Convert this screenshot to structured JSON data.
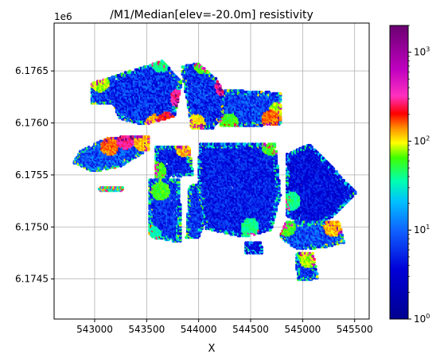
{
  "chart_data": {
    "type": "scatter",
    "title": "/M1/Median[elev=-20.0m] resistivity",
    "xlabel": "X",
    "ylabel": "",
    "xlim": [
      542610,
      545640
    ],
    "ylim": [
      6174115,
      6176960
    ],
    "x_ticks": [
      {
        "value": 543000,
        "label": "543000"
      },
      {
        "value": 543500,
        "label": "543500"
      },
      {
        "value": 544000,
        "label": "544000"
      },
      {
        "value": 544500,
        "label": "544500"
      },
      {
        "value": 545000,
        "label": "545000"
      },
      {
        "value": 545500,
        "label": "545500"
      }
    ],
    "y_ticks": [
      {
        "value": 6174500,
        "label": "6.1745"
      },
      {
        "value": 6175000,
        "label": "6.1750"
      },
      {
        "value": 6175500,
        "label": "6.1755"
      },
      {
        "value": 6176000,
        "label": "6.1760"
      },
      {
        "value": 6176500,
        "label": "6.1765"
      }
    ],
    "y_offset_label": "1e6",
    "grid": true,
    "colorbar": {
      "scale": "log",
      "range": [
        1,
        2000
      ],
      "ticks": [
        {
          "value": 1,
          "label_base": "10",
          "label_exp": "0"
        },
        {
          "value": 10,
          "label_base": "10",
          "label_exp": "1"
        },
        {
          "value": 100,
          "label_base": "10",
          "label_exp": "2"
        },
        {
          "value": 1000,
          "label_base": "10",
          "label_exp": "3"
        }
      ]
    },
    "blocks": [
      {
        "name": "west-block",
        "x": [
          542790,
          542860,
          543130,
          543530,
          543520,
          543360,
          543250,
          542990,
          542830
        ],
        "y": [
          6175610,
          6175730,
          6175860,
          6175880,
          6175740,
          6175650,
          6175580,
          6175530,
          6175600
        ],
        "base": 8,
        "var": 4,
        "hot": [
          {
            "x": 543150,
            "y": 6175780,
            "v": 150
          },
          {
            "x": 543300,
            "y": 6175840,
            "v": 300
          },
          {
            "x": 543470,
            "y": 6175820,
            "v": 120
          }
        ]
      },
      {
        "name": "small-south-strip",
        "x": [
          543050,
          543280,
          543260,
          543030
        ],
        "y": [
          6175380,
          6175380,
          6175350,
          6175350
        ],
        "base": 30,
        "var": 3
      },
      {
        "name": "north-block",
        "x": [
          542960,
          543160,
          543650,
          543840,
          543770,
          543470,
          543240,
          543180,
          542970
        ],
        "y": [
          6176380,
          6176440,
          6176600,
          6176390,
          6176060,
          6175980,
          6176040,
          6176180,
          6176180
        ],
        "base": 6,
        "var": 4,
        "hot": [
          {
            "x": 543580,
            "y": 6175990,
            "v": 120
          },
          {
            "x": 543700,
            "y": 6176020,
            "v": 200
          },
          {
            "x": 543820,
            "y": 6176240,
            "v": 300
          },
          {
            "x": 543640,
            "y": 6176580,
            "v": 40
          },
          {
            "x": 543060,
            "y": 6176390,
            "v": 80
          }
        ]
      },
      {
        "name": "north-strip",
        "x": [
          543830,
          543990,
          544180,
          544310,
          544140,
          543930
        ],
        "y": [
          6176540,
          6176580,
          6176420,
          6176160,
          6175950,
          6175950
        ],
        "base": 6,
        "var": 4,
        "hot": [
          {
            "x": 544050,
            "y": 6176560,
            "v": 60
          },
          {
            "x": 544250,
            "y": 6176350,
            "v": 300
          },
          {
            "x": 543980,
            "y": 6176000,
            "v": 100
          }
        ]
      },
      {
        "name": "north-east-block",
        "x": [
          544250,
          544800,
          544800,
          544200
        ],
        "y": [
          6176320,
          6176290,
          6175980,
          6175960
        ],
        "base": 7,
        "var": 4,
        "hot": [
          {
            "x": 544700,
            "y": 6176040,
            "v": 150
          },
          {
            "x": 544770,
            "y": 6176120,
            "v": 80
          },
          {
            "x": 544300,
            "y": 6176010,
            "v": 60
          }
        ]
      },
      {
        "name": "center-west-block",
        "x": [
          543590,
          543910,
          543950,
          543590
        ],
        "y": [
          6175780,
          6175780,
          6175500,
          6175460
        ],
        "base": 5,
        "var": 3,
        "hot": [
          {
            "x": 543870,
            "y": 6175760,
            "v": 120
          },
          {
            "x": 543610,
            "y": 6175540,
            "v": 60
          }
        ]
      },
      {
        "name": "south-west-block",
        "x": [
          543530,
          543820,
          543830,
          543530
        ],
        "y": [
          6175460,
          6175460,
          6174850,
          6174900
        ],
        "base": 6,
        "var": 3,
        "hot": [
          {
            "x": 543640,
            "y": 6175350,
            "v": 60
          },
          {
            "x": 543560,
            "y": 6174930,
            "v": 35
          }
        ]
      },
      {
        "name": "south-center-block",
        "x": [
          543910,
          544050,
          544130,
          544000,
          543880
        ],
        "y": [
          6175400,
          6175420,
          6175200,
          6174900,
          6174900
        ],
        "base": 6,
        "var": 3
      },
      {
        "name": "big-center-block",
        "x": [
          544010,
          544740,
          544790,
          544700,
          544440,
          544070,
          543990
        ],
        "y": [
          6175800,
          6175800,
          6175300,
          6174970,
          6174900,
          6174980,
          6175400
        ],
        "base": 5,
        "var": 3,
        "hot": [
          {
            "x": 544700,
            "y": 6175780,
            "v": 60
          },
          {
            "x": 544500,
            "y": 6175000,
            "v": 40
          }
        ]
      },
      {
        "name": "east-block",
        "x": [
          544850,
          545070,
          545520,
          545300,
          545100,
          544850
        ],
        "y": [
          6175700,
          6175800,
          6175330,
          6175100,
          6175000,
          6175100
        ],
        "base": 4,
        "var": 3,
        "hot": [
          {
            "x": 544900,
            "y": 6175250,
            "v": 40
          }
        ]
      },
      {
        "name": "south-east-block",
        "x": [
          544840,
          545350,
          545400,
          545200,
          544950,
          544780
        ],
        "y": [
          6175050,
          6175050,
          6174850,
          6174800,
          6174780,
          6174900
        ],
        "base": 8,
        "var": 4,
        "hot": [
          {
            "x": 545300,
            "y": 6175000,
            "v": 120
          },
          {
            "x": 544850,
            "y": 6175000,
            "v": 60
          }
        ]
      },
      {
        "name": "south-tail",
        "x": [
          544930,
          545100,
          545150,
          544950
        ],
        "y": [
          6174760,
          6174760,
          6174500,
          6174480
        ],
        "base": 6,
        "var": 3,
        "hot": [
          {
            "x": 545060,
            "y": 6174700,
            "v": 80
          }
        ]
      },
      {
        "name": "mid-islands",
        "x": [
          544440,
          544600,
          544620,
          544450
        ],
        "y": [
          6174860,
          6174860,
          6174750,
          6174750
        ],
        "base": 4,
        "var": 2
      }
    ]
  }
}
